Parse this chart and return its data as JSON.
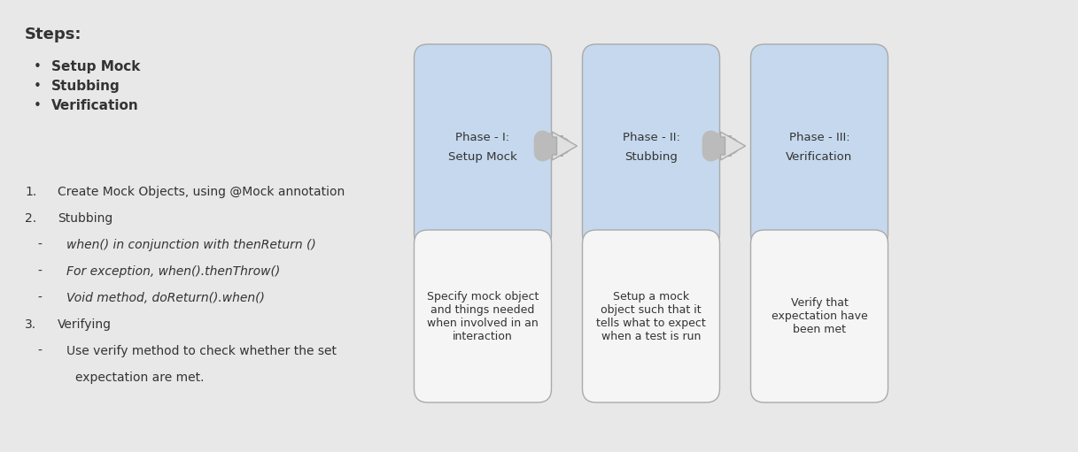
{
  "background_color": "#e8e8e8",
  "title": "Steps:",
  "title_fontsize": 13,
  "title_fontweight": "bold",
  "text_color": "#333333",
  "italic_color": "#555555",
  "bullet_fontsize": 11,
  "bullet_fontweight": "bold",
  "text_fontsize": 10,
  "phase_label_fontsize": 9.5,
  "desc_fontsize": 9,
  "bullets": [
    {
      "text": "Setup Mock"
    },
    {
      "text": "Stubbing"
    },
    {
      "text": "Verification"
    }
  ],
  "list_items": [
    {
      "type": "numbered",
      "num": "1.",
      "text": "Create Mock Objects, using @Mock annotation",
      "italic": false
    },
    {
      "type": "numbered",
      "num": "2.",
      "text": "Stubbing",
      "italic": false
    },
    {
      "type": "sub",
      "num": "-",
      "text": "when() in conjunction with thenReturn ()",
      "italic": true
    },
    {
      "type": "sub",
      "num": "-",
      "text": "For exception, when().thenThrow()",
      "italic": true
    },
    {
      "type": "sub",
      "num": "-",
      "text": "Void method, doReturn().when()",
      "italic": true
    },
    {
      "type": "numbered",
      "num": "3.",
      "text": "Verifying",
      "italic": false
    },
    {
      "type": "sub",
      "num": "-",
      "text": "Use verify method to check whether the set",
      "italic": false
    },
    {
      "type": "sub2",
      "num": "",
      "text": "expectation are met.",
      "italic": false
    }
  ],
  "phases": [
    {
      "label_top": "Phase - I:",
      "label_bot": "Setup Mock",
      "desc": "Specify mock object\nand things needed\nwhen involved in an\ninteraction"
    },
    {
      "label_top": "Phase - II:",
      "label_bot": "Stubbing",
      "desc": "Setup a mock\nobject such that it\ntells what to expect\nwhen a test is run"
    },
    {
      "label_top": "Phase - III:",
      "label_bot": "Verification",
      "desc": "Verify that\nexpectation have\nbeen met"
    }
  ],
  "top_box_color": "#c5d8ed",
  "bot_box_color": "#f5f5f5",
  "box_edge_color": "#aaaaaa",
  "arrow_color": "#bbbbbb",
  "arrow_edge_color": "#999999"
}
